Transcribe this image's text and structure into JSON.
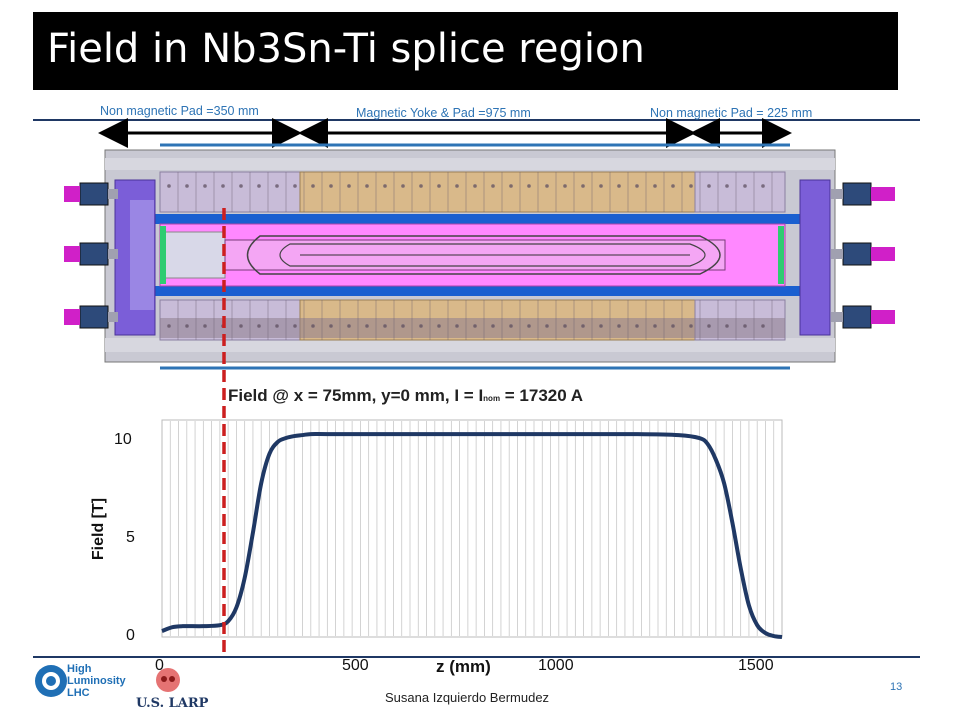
{
  "slide": {
    "title": "Field in Nb3Sn-Ti splice region",
    "page_number": "13",
    "footer": "Susana Izquierdo Bermudez"
  },
  "dimensions": {
    "left_pad": "Non magnetic Pad =350 mm",
    "middle": "Magnetic Yoke & Pad =975 mm",
    "right_pad": "Non magnetic Pad = 225 mm"
  },
  "plot_title": {
    "prefix": "Field @ x = 75mm, y=0 mm, I = I",
    "subscript": "nom",
    "suffix": " = 17320 A"
  },
  "logos": {
    "hl_line1": "High",
    "hl_line2": "Luminosity",
    "hl_line3": "LHC",
    "usl": "U.S. LARP"
  },
  "colors": {
    "accent_blue": "#2e74b5",
    "navy": "#1f3864",
    "curve": "#1f3864",
    "marker": "#cc1f1f",
    "yoke": "#d9b98a",
    "pad": "#c8bcd8",
    "coil": "#ff88ff"
  },
  "chart_data": {
    "type": "line",
    "title": "Field @ x = 75mm, y=0 mm, I = Inom = 17320 A",
    "xlabel": "z (mm)",
    "ylabel": "Field [T]",
    "xlim": [
      0,
      1500
    ],
    "ylim": [
      0,
      10
    ],
    "xticks": [
      "0",
      "500",
      "1000",
      "1500"
    ],
    "yticks": [
      "0",
      "5",
      "10"
    ],
    "marker_z": 150,
    "series": [
      {
        "x": [
          0,
          25,
          50,
          100,
          140,
          160,
          180,
          200,
          220,
          240,
          260,
          280,
          300,
          320,
          340,
          360,
          400,
          500,
          600,
          800,
          1000,
          1150,
          1250,
          1300,
          1320,
          1340,
          1360,
          1380,
          1400,
          1420,
          1440,
          1460,
          1480,
          1500
        ],
        "values": [
          0.3,
          0.5,
          0.55,
          0.55,
          0.6,
          0.8,
          1.5,
          3.0,
          5.3,
          7.8,
          9.3,
          9.9,
          10.1,
          10.2,
          10.25,
          10.3,
          10.3,
          10.3,
          10.3,
          10.3,
          10.3,
          10.3,
          10.25,
          10.1,
          9.8,
          9.0,
          7.8,
          5.8,
          3.5,
          1.6,
          0.6,
          0.2,
          0.05,
          0.0
        ]
      }
    ]
  }
}
